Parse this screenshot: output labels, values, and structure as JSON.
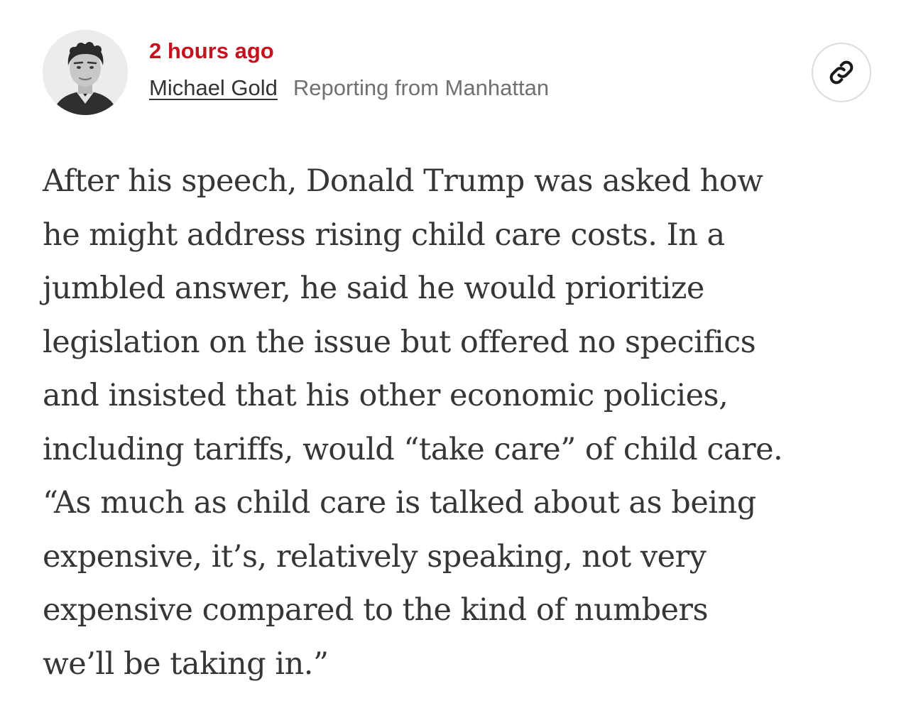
{
  "post": {
    "timestamp": "2 hours ago",
    "author": "Michael Gold",
    "location": "Reporting from Manhattan",
    "avatar_icon": "author-headshot",
    "share_icon": "link-icon"
  },
  "article": {
    "lines": [
      "After his speech, Donald Trump was asked how",
      "he might address rising child care costs. In a",
      "jumbled answer, he said he would prioritize",
      "legislation on the issue but offered no specifics",
      "and insisted that his other economic policies,",
      "including tariffs, would “take care” of child care.",
      "“As much as child care is talked about as being",
      "expensive, it’s, relatively speaking, not very",
      "expensive compared to the kind of numbers",
      "we’ll be taking in.”"
    ]
  },
  "colors": {
    "timestamp": "#c4121f",
    "author": "#333333",
    "location": "#707070",
    "body_text": "#363636"
  }
}
